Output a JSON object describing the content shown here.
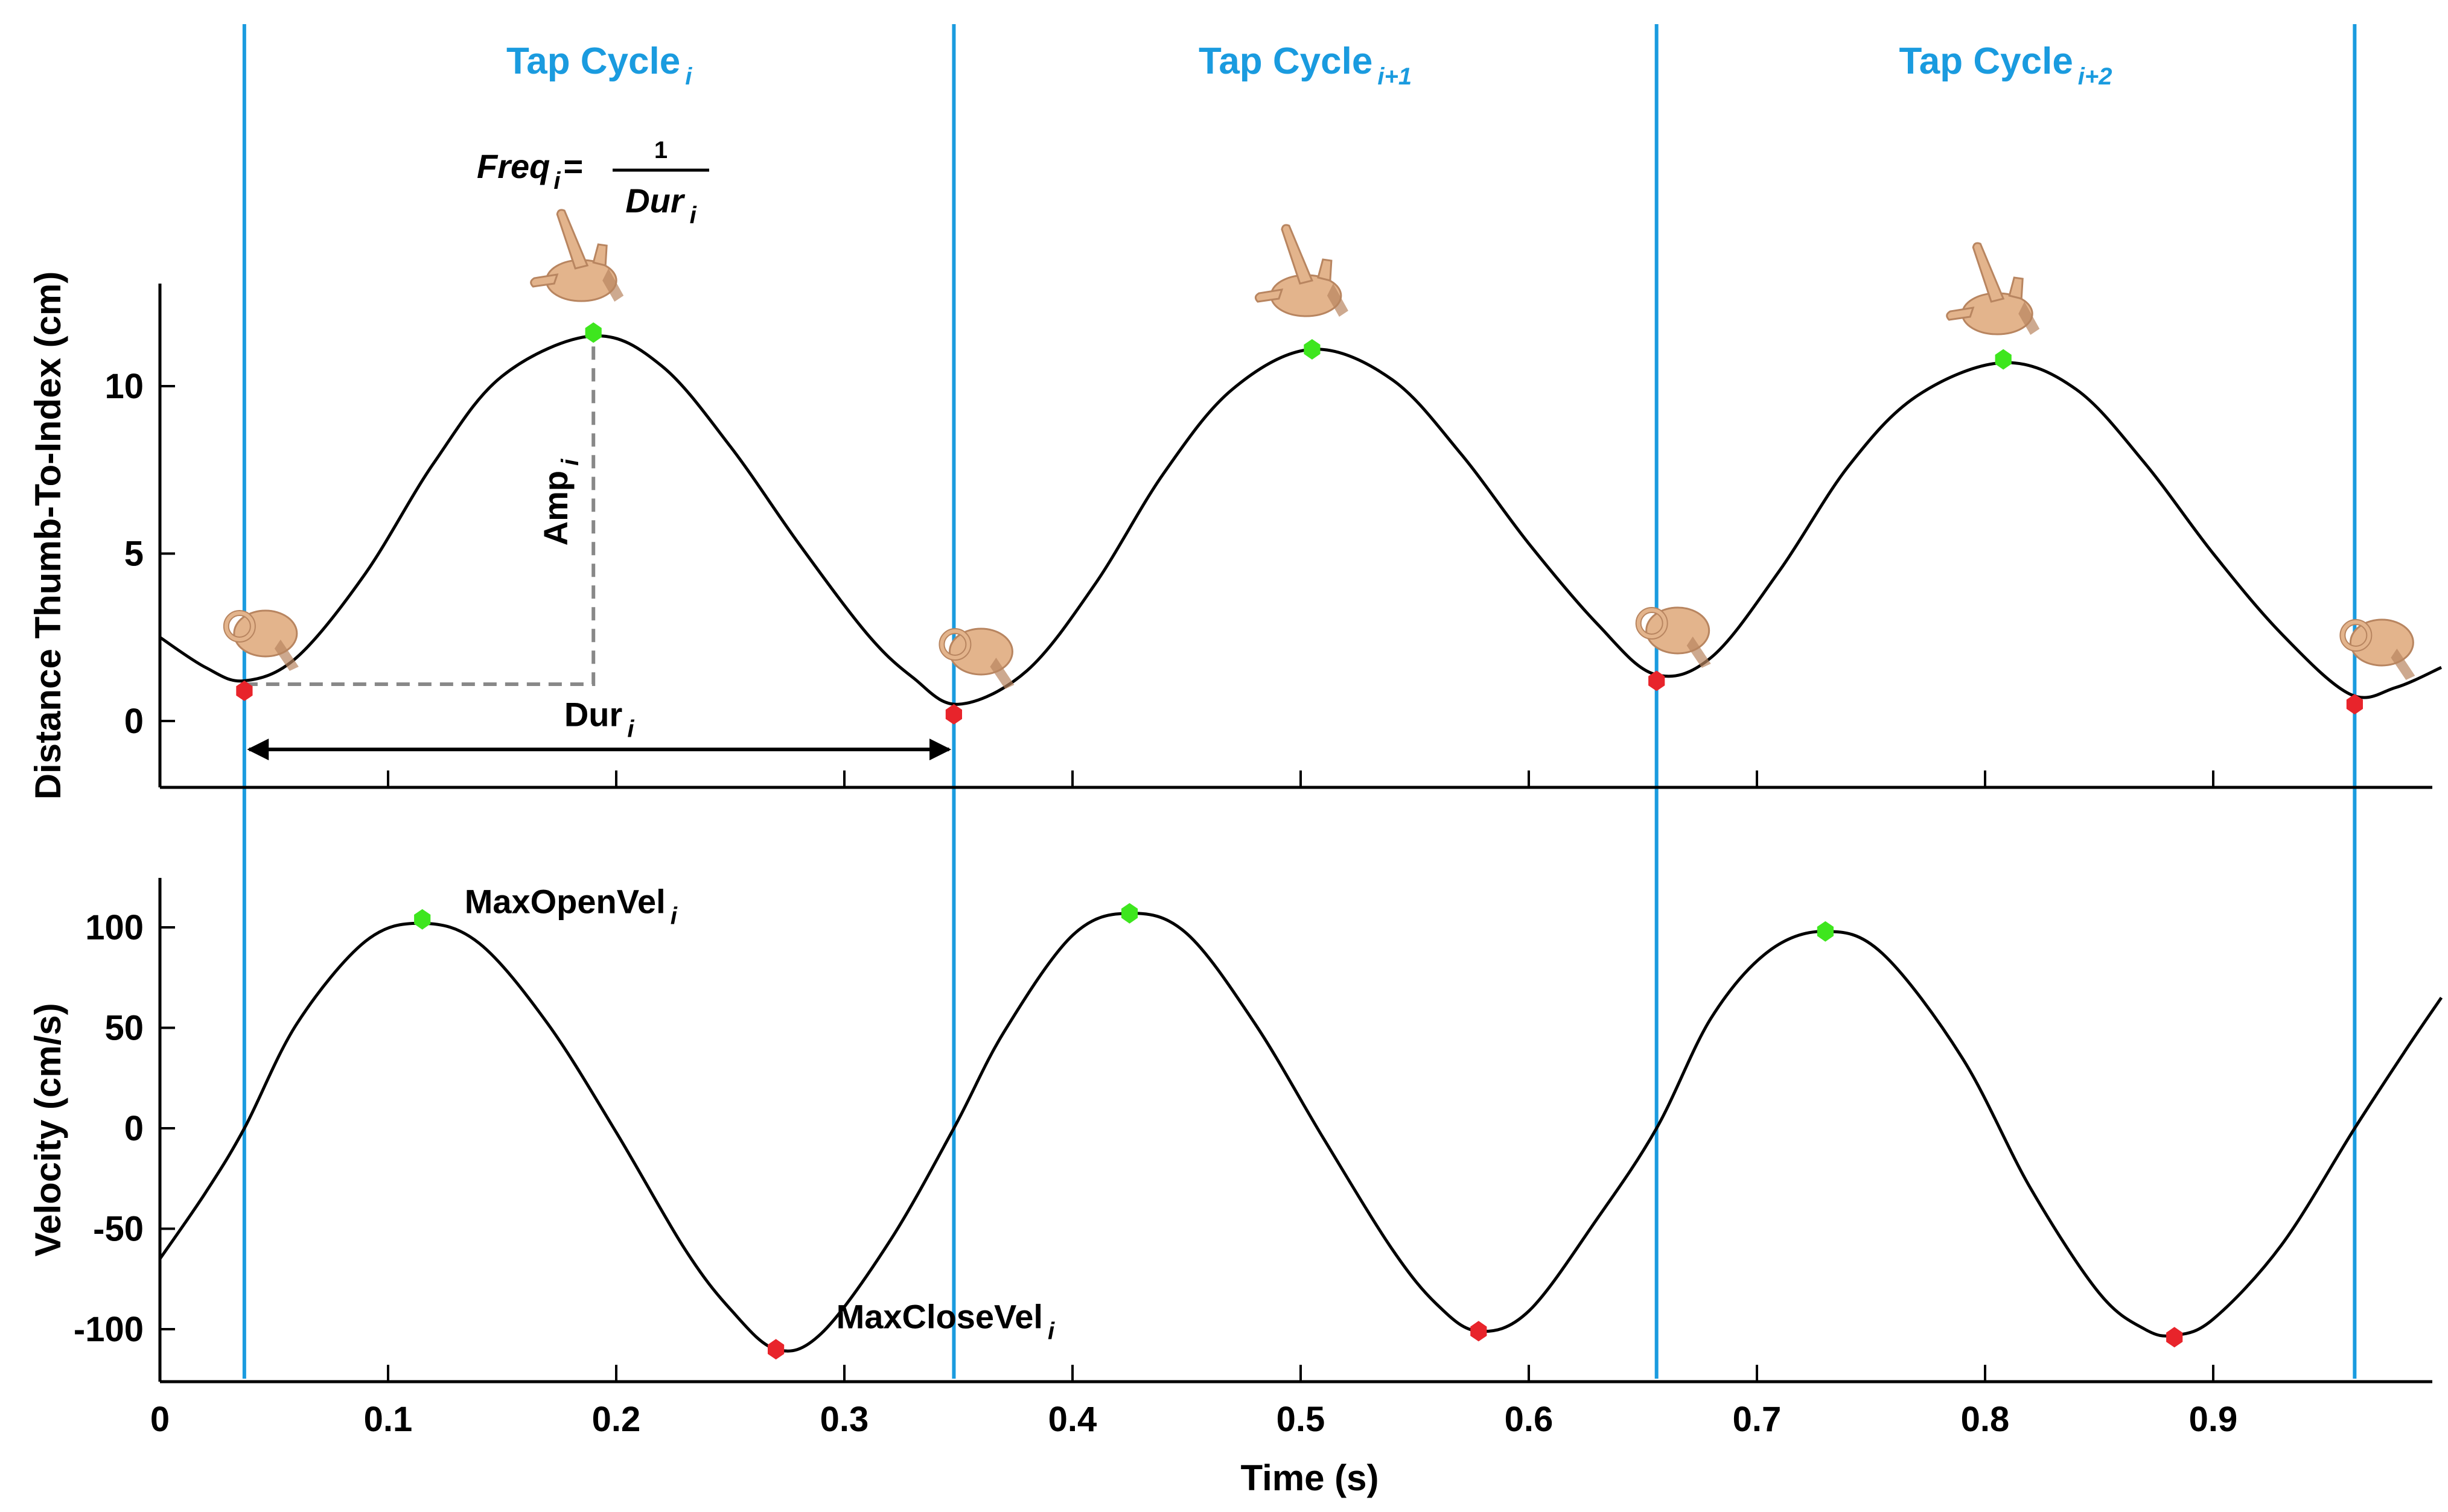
{
  "chart_data": [
    {
      "type": "line",
      "panel": "distance",
      "ylabel": "Distance Thumb-To-Index (cm)",
      "xlim": [
        0,
        1.0
      ],
      "ylim": [
        -2,
        13
      ],
      "yticks": [
        0,
        5,
        10
      ],
      "series": [
        {
          "name": "distance",
          "x": [
            0,
            0.02,
            0.037,
            0.06,
            0.09,
            0.12,
            0.15,
            0.19,
            0.22,
            0.25,
            0.28,
            0.31,
            0.33,
            0.35,
            0.38,
            0.41,
            0.44,
            0.47,
            0.505,
            0.54,
            0.57,
            0.6,
            0.63,
            0.655,
            0.68,
            0.71,
            0.74,
            0.77,
            0.808,
            0.84,
            0.87,
            0.9,
            0.93,
            0.96,
            0.98,
            1.0
          ],
          "y": [
            2.5,
            1.6,
            1.2,
            1.9,
            4.4,
            7.7,
            10.3,
            11.5,
            10.6,
            8.2,
            5.3,
            2.6,
            1.3,
            0.5,
            1.5,
            4.1,
            7.4,
            9.9,
            11.1,
            10.2,
            8.0,
            5.3,
            2.9,
            1.4,
            1.9,
            4.5,
            7.6,
            9.7,
            10.7,
            9.9,
            7.7,
            5.0,
            2.6,
            0.8,
            1.0,
            1.6
          ]
        }
      ],
      "markers": {
        "max": [
          {
            "x": 0.19,
            "y": 11.6
          },
          {
            "x": 0.505,
            "y": 11.1
          },
          {
            "x": 0.808,
            "y": 10.8
          }
        ],
        "min": [
          {
            "x": 0.037,
            "y": 0.9
          },
          {
            "x": 0.348,
            "y": 0.2
          },
          {
            "x": 0.656,
            "y": 1.2
          },
          {
            "x": 0.962,
            "y": 0.5
          }
        ]
      }
    },
    {
      "type": "line",
      "panel": "velocity",
      "xlabel": "Time (s)",
      "ylabel": "Velocity (cm/s)",
      "xlim": [
        0,
        1.0
      ],
      "ylim": [
        -125,
        125
      ],
      "xticks": [
        0,
        0.1,
        0.2,
        0.3,
        0.4,
        0.5,
        0.6,
        0.7,
        0.8,
        0.9
      ],
      "xticklabels": [
        "0",
        "0.1",
        "0.2",
        "0.3",
        "0.4",
        "0.5",
        "0.6",
        "0.7",
        "0.8",
        "0.9"
      ],
      "yticks": [
        100,
        50,
        0,
        -50,
        -100
      ],
      "series": [
        {
          "name": "velocity",
          "x": [
            0,
            0.02,
            0.037,
            0.06,
            0.09,
            0.115,
            0.14,
            0.17,
            0.2,
            0.23,
            0.25,
            0.27,
            0.29,
            0.32,
            0.348,
            0.37,
            0.4,
            0.425,
            0.45,
            0.48,
            0.51,
            0.54,
            0.56,
            0.578,
            0.6,
            0.63,
            0.656,
            0.68,
            0.705,
            0.73,
            0.755,
            0.79,
            0.82,
            0.85,
            0.87,
            0.883,
            0.9,
            0.93,
            0.962,
            0.985,
            1.0
          ],
          "y": [
            -65,
            -32,
            0,
            52,
            93,
            102,
            92,
            52,
            -2,
            -60,
            -90,
            -110,
            -102,
            -56,
            0,
            48,
            96,
            107,
            97,
            52,
            -5,
            -60,
            -88,
            -101,
            -91,
            -45,
            0,
            55,
            88,
            98,
            87,
            35,
            -30,
            -82,
            -100,
            -103,
            -95,
            -58,
            0,
            40,
            65
          ]
        }
      ],
      "markers": {
        "max": [
          {
            "x": 0.115,
            "y": 104
          },
          {
            "x": 0.425,
            "y": 107
          },
          {
            "x": 0.73,
            "y": 98
          }
        ],
        "min": [
          {
            "x": 0.27,
            "y": -110
          },
          {
            "x": 0.578,
            "y": -101
          },
          {
            "x": 0.883,
            "y": -104
          }
        ]
      }
    }
  ],
  "cycle_boundaries": [
    0.037,
    0.348,
    0.656,
    0.962
  ],
  "tap_cycles": [
    {
      "label": "Tap Cycle",
      "sub": "i"
    },
    {
      "label": "Tap Cycle",
      "sub": "i+1"
    },
    {
      "label": "Tap Cycle",
      "sub": "i+2"
    }
  ],
  "annotations": {
    "freq": {
      "label": "Freq",
      "sub": "i",
      "equals": "=",
      "numerator": "1",
      "denominator": "Dur",
      "denominator_sub": "i"
    },
    "amp": {
      "label": "Amp",
      "sub": "i"
    },
    "dur": {
      "label": "Dur",
      "sub": "i"
    },
    "max_open_vel": {
      "label": "MaxOpenVel",
      "sub": "i"
    },
    "max_close_vel": {
      "label": "MaxCloseVel",
      "sub": "i"
    }
  },
  "colors": {
    "cycle_line": "#1a9bdf",
    "curve": "#000000",
    "max_marker": "#3ee61e",
    "min_marker": "#e8242b",
    "dashed": "#888888",
    "hand_skin": "#e3b48c",
    "hand_shadow": "#b88560"
  },
  "icons": {
    "open_hand": "open-hand-icon",
    "pinch_hand": "pinch-hand-icon"
  }
}
